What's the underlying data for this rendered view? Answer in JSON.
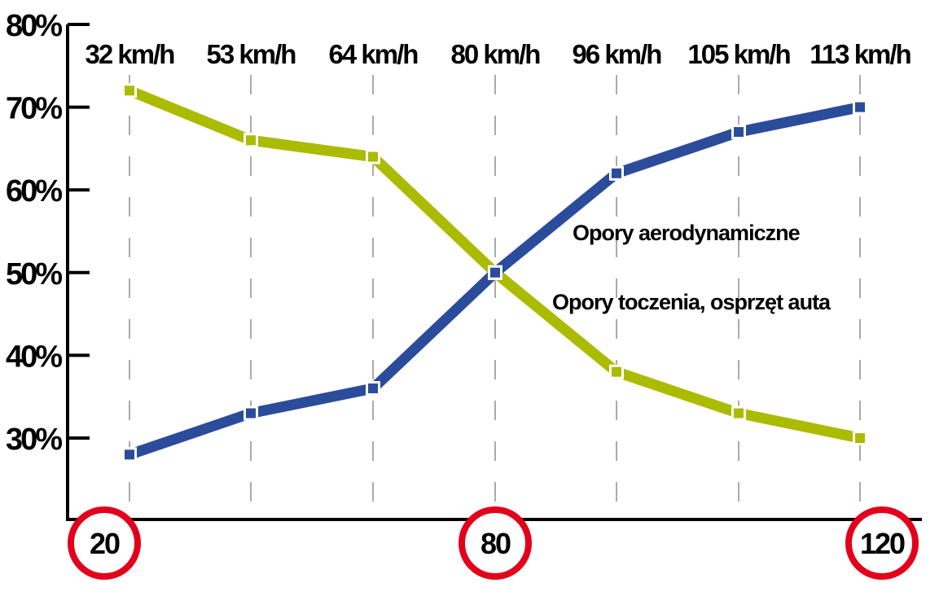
{
  "chart_data": {
    "type": "line",
    "title": "",
    "xlabel": "",
    "ylabel": "",
    "ylim": [
      20,
      80
    ],
    "y_ticks": [
      "80%",
      "70%",
      "60%",
      "50%",
      "40%",
      "30%"
    ],
    "categories": [
      "32 km/h",
      "53 km/h",
      "64 km/h",
      "80 km/h",
      "96 km/h",
      "105 km/h",
      "113 km/h"
    ],
    "series": [
      {
        "name": "Opory toczenia, osprzęt auta",
        "color": "#aabb00",
        "values": [
          72,
          66,
          64,
          50,
          38,
          33,
          30
        ]
      },
      {
        "name": "Opory aerodynamiczne",
        "color": "#2b4c9b",
        "values": [
          28,
          33,
          36,
          50,
          62,
          67,
          70
        ]
      }
    ],
    "annotations": [
      "Opory aerodynamiczne",
      "Opory toczenia, osprzęt auta"
    ],
    "speed_signs": [
      "20",
      "80",
      "120"
    ],
    "grid": "vertical dashed",
    "legend": "inline labels"
  },
  "colors": {
    "green": "#aabb00",
    "blue": "#2b4c9b",
    "sign_red": "#e2001a",
    "grid": "#aaaaaa"
  }
}
